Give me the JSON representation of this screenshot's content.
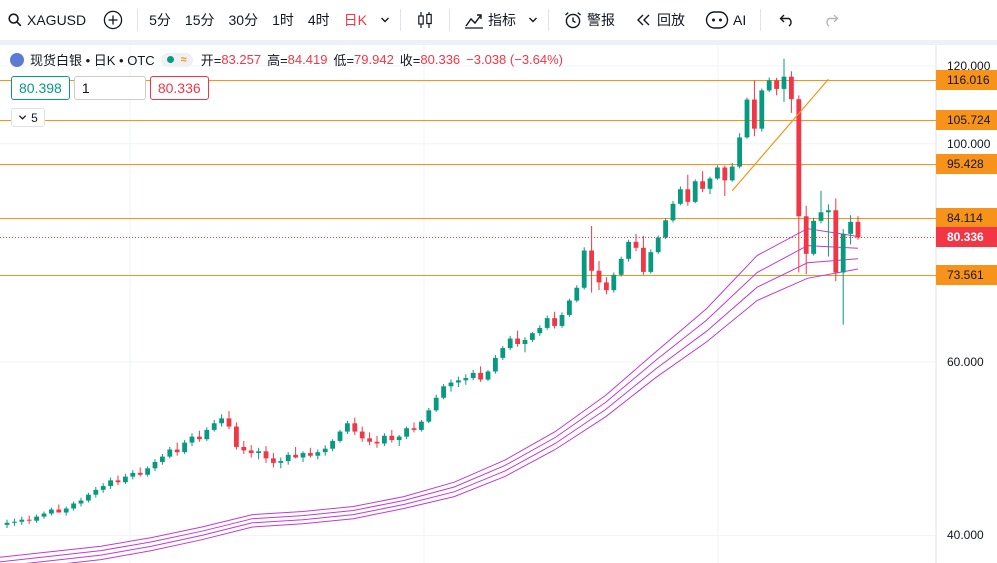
{
  "toolbar": {
    "symbol": "XAGUSD",
    "intervals": [
      "5分",
      "15分",
      "30分",
      "1时",
      "4时",
      "日K"
    ],
    "active_interval": "日K",
    "indicators_label": "指标",
    "alert_label": "警报",
    "replay_label": "回放",
    "ai_label": "AI"
  },
  "legend": {
    "title": "现货白银 • 日K • OTC",
    "open_label": "开=",
    "open": "83.257",
    "high_label": "高=",
    "high": "84.419",
    "low_label": "低=",
    "low": "79.942",
    "close_label": "收=",
    "close": "80.336",
    "change": "−3.038 (−3.64%)",
    "bid": "80.398",
    "qty": "1",
    "ask": "80.336",
    "collapsed_count": "5"
  },
  "colors": {
    "up": "#089981",
    "down": "#f23645",
    "hline": "#f7931a",
    "ribbon": "#c03ad8",
    "price": "#f23645"
  },
  "chart_data": {
    "type": "candlestick",
    "y_scale": "log",
    "ylim": [
      37.5,
      126
    ],
    "y_ticks": [
      {
        "value": 40,
        "label": "40.000"
      },
      {
        "value": 60,
        "label": "60.000"
      },
      {
        "value": 100,
        "label": "100.000"
      },
      {
        "value": 120,
        "label": "120.000"
      }
    ],
    "horizontal_levels": [
      {
        "value": 116.016,
        "label": "116.016"
      },
      {
        "value": 105.724,
        "label": "105.724"
      },
      {
        "value": 95.428,
        "label": "95.428"
      },
      {
        "value": 84.114,
        "label": "84.114"
      },
      {
        "value": 73.561,
        "label": "73.561"
      }
    ],
    "last_price": {
      "value": 80.336,
      "label": "80.336"
    },
    "candles": [
      [
        41.0,
        41.5,
        40.7,
        41.2
      ],
      [
        41.2,
        41.6,
        40.9,
        41.3
      ],
      [
        41.3,
        41.8,
        41.0,
        41.5
      ],
      [
        41.5,
        41.9,
        41.1,
        41.4
      ],
      [
        41.4,
        42.0,
        41.2,
        41.8
      ],
      [
        41.8,
        42.3,
        41.6,
        42.1
      ],
      [
        42.1,
        42.7,
        41.9,
        42.5
      ],
      [
        42.5,
        43.0,
        42.2,
        42.2
      ],
      [
        42.2,
        42.8,
        41.9,
        42.6
      ],
      [
        42.6,
        43.3,
        42.4,
        43.1
      ],
      [
        43.1,
        43.7,
        42.8,
        43.4
      ],
      [
        43.4,
        44.2,
        43.2,
        44.0
      ],
      [
        44.0,
        44.8,
        43.7,
        44.5
      ],
      [
        44.5,
        45.2,
        44.2,
        44.9
      ],
      [
        44.9,
        45.8,
        44.6,
        45.5
      ],
      [
        45.5,
        46.0,
        45.0,
        45.3
      ],
      [
        45.3,
        46.2,
        45.1,
        45.9
      ],
      [
        45.9,
        46.6,
        45.6,
        46.3
      ],
      [
        46.3,
        46.9,
        45.9,
        46.1
      ],
      [
        46.1,
        47.0,
        45.9,
        46.8
      ],
      [
        46.8,
        47.8,
        46.5,
        47.5
      ],
      [
        47.5,
        48.4,
        47.2,
        48.1
      ],
      [
        48.1,
        49.2,
        47.9,
        48.9
      ],
      [
        48.9,
        49.7,
        48.2,
        48.6
      ],
      [
        48.6,
        50.0,
        48.4,
        49.7
      ],
      [
        49.7,
        50.8,
        49.3,
        50.4
      ],
      [
        50.4,
        51.1,
        49.8,
        50.1
      ],
      [
        50.1,
        51.5,
        49.9,
        51.2
      ],
      [
        51.2,
        52.4,
        51.0,
        52.0
      ],
      [
        52.0,
        53.1,
        51.6,
        52.6
      ],
      [
        52.6,
        53.5,
        51.3,
        51.6
      ],
      [
        51.6,
        52.1,
        48.9,
        49.2
      ],
      [
        49.2,
        49.9,
        48.4,
        48.8
      ],
      [
        48.8,
        49.4,
        48.0,
        48.5
      ],
      [
        48.5,
        49.1,
        47.8,
        48.7
      ],
      [
        48.7,
        49.3,
        47.4,
        47.9
      ],
      [
        47.9,
        48.5,
        46.9,
        47.4
      ],
      [
        47.4,
        48.0,
        46.8,
        47.6
      ],
      [
        47.6,
        48.6,
        47.2,
        48.3
      ],
      [
        48.3,
        49.2,
        47.9,
        48.0
      ],
      [
        48.0,
        48.7,
        47.5,
        48.5
      ],
      [
        48.5,
        49.1,
        48.0,
        48.2
      ],
      [
        48.2,
        48.9,
        47.8,
        48.6
      ],
      [
        48.6,
        49.4,
        48.2,
        49.0
      ],
      [
        49.0,
        50.1,
        48.7,
        49.9
      ],
      [
        49.9,
        51.2,
        49.7,
        51.0
      ],
      [
        51.0,
        52.3,
        50.7,
        52.0
      ],
      [
        52.0,
        52.7,
        50.6,
        51.0
      ],
      [
        51.0,
        51.6,
        49.8,
        50.2
      ],
      [
        50.2,
        50.9,
        49.4,
        49.8
      ],
      [
        49.8,
        50.5,
        49.1,
        49.6
      ],
      [
        49.6,
        50.8,
        49.3,
        50.5
      ],
      [
        50.5,
        51.2,
        49.7,
        50.0
      ],
      [
        50.0,
        50.6,
        49.3,
        50.4
      ],
      [
        50.4,
        51.6,
        50.1,
        51.4
      ],
      [
        51.4,
        52.1,
        50.9,
        51.2
      ],
      [
        51.2,
        52.4,
        51.0,
        52.2
      ],
      [
        52.2,
        53.9,
        52.0,
        53.6
      ],
      [
        53.6,
        55.6,
        53.4,
        55.2
      ],
      [
        55.2,
        57.0,
        55.0,
        56.7
      ],
      [
        56.7,
        57.6,
        56.0,
        57.2
      ],
      [
        57.2,
        58.0,
        56.6,
        57.5
      ],
      [
        57.5,
        58.3,
        56.9,
        57.8
      ],
      [
        57.8,
        58.9,
        57.5,
        58.5
      ],
      [
        58.5,
        59.4,
        57.3,
        57.6
      ],
      [
        57.6,
        58.9,
        57.4,
        58.7
      ],
      [
        58.7,
        61.0,
        58.4,
        60.6
      ],
      [
        60.6,
        62.3,
        60.3,
        62.0
      ],
      [
        62.0,
        63.8,
        61.7,
        63.4
      ],
      [
        63.4,
        64.6,
        62.2,
        62.6
      ],
      [
        62.6,
        63.6,
        61.4,
        63.2
      ],
      [
        63.2,
        64.4,
        62.9,
        64.2
      ],
      [
        64.2,
        65.4,
        63.8,
        65.0
      ],
      [
        65.0,
        66.9,
        64.7,
        66.5
      ],
      [
        66.5,
        67.5,
        64.9,
        65.3
      ],
      [
        65.3,
        67.4,
        65.0,
        67.0
      ],
      [
        67.0,
        69.6,
        66.7,
        69.3
      ],
      [
        69.3,
        71.8,
        69.0,
        71.4
      ],
      [
        71.4,
        78.5,
        71.1,
        77.9
      ],
      [
        77.9,
        82.5,
        70.6,
        74.3
      ],
      [
        74.3,
        76.0,
        71.0,
        72.3
      ],
      [
        72.3,
        73.2,
        70.3,
        71.0
      ],
      [
        71.0,
        74.0,
        70.6,
        73.6
      ],
      [
        73.6,
        76.8,
        73.3,
        76.4
      ],
      [
        76.4,
        79.9,
        75.9,
        79.5
      ],
      [
        79.5,
        81.0,
        77.8,
        78.4
      ],
      [
        78.4,
        80.6,
        73.6,
        74.1
      ],
      [
        74.1,
        78.1,
        73.8,
        77.6
      ],
      [
        77.6,
        80.7,
        77.3,
        80.3
      ],
      [
        80.3,
        84.0,
        80.0,
        83.6
      ],
      [
        83.6,
        87.5,
        83.2,
        86.9
      ],
      [
        86.9,
        90.5,
        86.6,
        89.9
      ],
      [
        89.9,
        93.0,
        86.5,
        87.3
      ],
      [
        87.3,
        92.0,
        87.0,
        91.6
      ],
      [
        91.6,
        93.8,
        89.3,
        90.0
      ],
      [
        90.0,
        92.6,
        88.9,
        92.2
      ],
      [
        92.2,
        95.1,
        91.9,
        94.6
      ],
      [
        94.6,
        95.0,
        88.5,
        91.8
      ],
      [
        91.8,
        95.6,
        91.5,
        94.8
      ],
      [
        94.8,
        102.5,
        94.4,
        101.5
      ],
      [
        101.5,
        111.4,
        101.2,
        110.9
      ],
      [
        110.9,
        116.0,
        101.8,
        103.6
      ],
      [
        103.6,
        113.8,
        102.9,
        113.3
      ],
      [
        113.3,
        116.8,
        112.9,
        116.0
      ],
      [
        116.0,
        116.7,
        112.0,
        113.7
      ],
      [
        113.7,
        122.0,
        110.3,
        117.0
      ],
      [
        117.0,
        118.5,
        107.5,
        111.0
      ],
      [
        111.0,
        112.0,
        74.0,
        84.4
      ],
      [
        84.4,
        86.5,
        73.7,
        77.3
      ],
      [
        77.3,
        84.1,
        77.0,
        83.5
      ],
      [
        83.5,
        89.6,
        83.0,
        85.2
      ],
      [
        85.2,
        86.8,
        76.8,
        85.6
      ],
      [
        85.6,
        88.0,
        72.5,
        74.0
      ],
      [
        74.0,
        81.9,
        65.5,
        81.0
      ],
      [
        81.0,
        84.6,
        79.0,
        83.3
      ],
      [
        83.3,
        84.4,
        79.9,
        80.3
      ]
    ],
    "ribbon_series": [
      {
        "values": [
          38.0,
          38.5,
          39.0,
          39.8,
          40.8,
          42.0,
          42.3,
          42.8,
          43.8,
          45.3,
          47.7,
          51.0,
          55.5,
          61.5,
          68.0,
          77.0,
          82.0,
          80.5
        ]
      },
      {
        "values": [
          37.6,
          38.1,
          38.6,
          39.4,
          40.4,
          41.6,
          41.9,
          42.4,
          43.4,
          44.8,
          47.1,
          50.3,
          54.6,
          60.3,
          66.2,
          74.0,
          78.8,
          78.3
        ]
      },
      {
        "values": [
          37.2,
          37.7,
          38.2,
          39.0,
          40.0,
          41.2,
          41.5,
          42.0,
          43.0,
          44.3,
          46.5,
          49.6,
          53.7,
          59.1,
          64.5,
          71.5,
          75.7,
          76.4
        ]
      },
      {
        "values": [
          36.8,
          37.3,
          37.8,
          38.6,
          39.6,
          40.8,
          41.1,
          41.6,
          42.6,
          43.8,
          45.9,
          48.9,
          52.8,
          57.9,
          62.9,
          69.3,
          73.0,
          74.6
        ]
      }
    ],
    "trend_line": [
      [
        98,
        89.6
      ],
      [
        111,
        116.3
      ]
    ]
  }
}
